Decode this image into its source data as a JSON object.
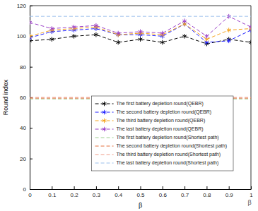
{
  "chart_data": {
    "type": "line",
    "x_label": "β",
    "y_label": "Round index",
    "annotations": [
      "β"
    ],
    "x": [
      0,
      0.1,
      0.2,
      0.3,
      0.4,
      0.5,
      0.6,
      0.7,
      0.8,
      0.9,
      1
    ],
    "xlim": [
      0,
      1
    ],
    "xticks": [
      0,
      0.1,
      0.2,
      0.3,
      0.4,
      0.5,
      0.6,
      0.7,
      0.8,
      0.9,
      1
    ],
    "ylim": [
      0,
      120
    ],
    "yticks": [
      0,
      20,
      40,
      60,
      80,
      100,
      120
    ],
    "grid": false,
    "legend": "lower right",
    "series": [
      {
        "name": "The first battery depletion round(QEBR)",
        "color": "#000000",
        "marker": "asterisk",
        "line_style": "dashed",
        "values": [
          97,
          98,
          100,
          101,
          96,
          98,
          96,
          100,
          95,
          98,
          96
        ]
      },
      {
        "name": "The second battery depletion round(QEBR)",
        "color": "#1f1fff",
        "marker": "asterisk",
        "line_style": "dashed",
        "values": [
          99,
          103,
          104,
          105,
          101,
          101,
          100,
          108,
          96,
          97,
          104
        ]
      },
      {
        "name": "The third battery depletion round(QEBR)",
        "color": "#f5a21a",
        "marker": "asterisk",
        "line_style": "dashed",
        "values": [
          100,
          104,
          105,
          106,
          101,
          102,
          101,
          108,
          98,
          104,
          105
        ]
      },
      {
        "name": "The last battery depletion round(QEBR)",
        "color": "#9b3fc8",
        "marker": "asterisk",
        "line_style": "dashed",
        "values": [
          109,
          105,
          106,
          107,
          102,
          103,
          102,
          110,
          100,
          113,
          106
        ]
      },
      {
        "name": "The first battery depletion round(Shortest path)",
        "color": "#9ccf8e",
        "marker": "none",
        "line_style": "dashed",
        "values": [
          59,
          59,
          59,
          59,
          59,
          59,
          59,
          59,
          59,
          59,
          59
        ]
      },
      {
        "name": "The second battery depletion round(Shortest path)",
        "color": "#e4703f",
        "marker": "none",
        "line_style": "dashed",
        "values": [
          59.5,
          59.5,
          59.5,
          59.5,
          59.5,
          59.5,
          59.5,
          59.5,
          59.5,
          59.5,
          59.5
        ]
      },
      {
        "name": "The third battery depletion round(Shortest path)",
        "color": "#ee9a86",
        "marker": "none",
        "line_style": "dashed",
        "values": [
          60,
          60,
          60,
          60,
          60,
          60,
          60,
          60,
          60,
          60,
          60
        ]
      },
      {
        "name": "The last battery depletion round(Shortest path)",
        "color": "#9cc0ec",
        "marker": "none",
        "line_style": "dashed",
        "values": [
          113,
          113,
          113,
          113,
          113,
          113,
          113,
          113,
          113,
          113,
          113
        ]
      }
    ]
  }
}
